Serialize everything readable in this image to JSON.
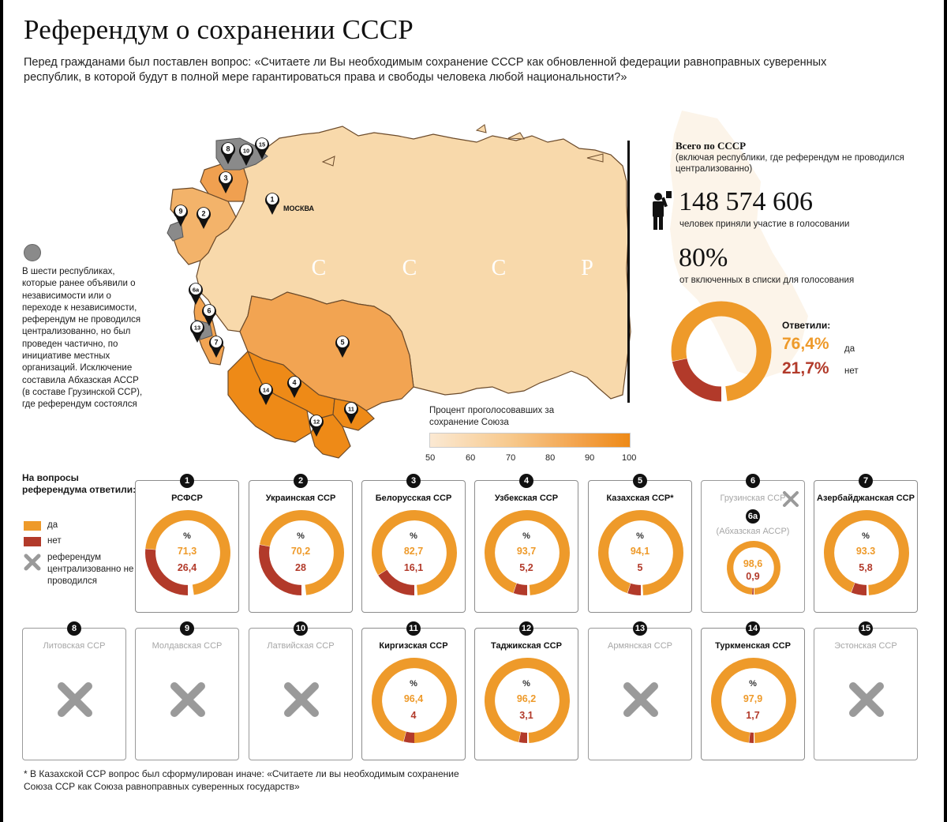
{
  "title": "Референдум о сохранении СССР",
  "lead": "Перед гражданами был поставлен вопрос: «Считаете ли Вы необходимым сохранение СССР как обновленной федерации равноправных суверенных республик, в которой будут в полной мере гарантироваться права и свободы человека любой национальности?»",
  "map": {
    "country_letters": [
      "С",
      "С",
      "С",
      "Р"
    ],
    "capital": "МОСКВА",
    "markers": [
      "1",
      "2",
      "3",
      "4",
      "5",
      "6",
      "6а",
      "7",
      "8",
      "9",
      "10",
      "11",
      "12",
      "13",
      "14",
      "15"
    ],
    "side_note": "В шести республиках, которые ранее объявили о независимости или о переходе к независимости, референдум не проводился централизованно, но был проведен частично, по инициативе местных организаций. Исключение составила Абхазская АССР (в составе Грузинской ССР), где референдум состоялся"
  },
  "totals": {
    "heading": "Всего по СССР",
    "subheading": "(включая республики, где референдум не проводился централизованно)",
    "participants": "148 574 606",
    "participants_label": "человек приняли участие в голосовании",
    "turnout": "80%",
    "turnout_label": "от включенных в списки для голосования",
    "answered_label": "Ответили:",
    "yes_value": "76,4%",
    "yes_label": "да",
    "no_value": "21,7%",
    "no_label": "нет"
  },
  "scale": {
    "title": "Процент проголосовавших за сохранение Союза",
    "ticks": [
      "50",
      "60",
      "70",
      "80",
      "90",
      "100"
    ]
  },
  "legend": {
    "heading": "На вопросы референдума ответили:",
    "yes": "да",
    "no": "нет",
    "not_held": "референдум централизованно не проводился"
  },
  "colors": {
    "yes": "#ee9a2a",
    "no": "#b23a2a",
    "not_held": "#9a9a9a",
    "map_light": "#f8d9ab",
    "map_dark": "#f1a04a"
  },
  "cards": [
    {
      "num": "1",
      "name": "РСФСР",
      "unit": "%",
      "yes": "71,3",
      "no": "26,4"
    },
    {
      "num": "2",
      "name": "Украинская ССР",
      "unit": "%",
      "yes": "70,2",
      "no": "28"
    },
    {
      "num": "3",
      "name": "Белорусская ССР",
      "unit": "%",
      "yes": "82,7",
      "no": "16,1"
    },
    {
      "num": "4",
      "name": "Узбекская ССР",
      "unit": "%",
      "yes": "93,7",
      "no": "5,2"
    },
    {
      "num": "5",
      "name": "Казахская ССР*",
      "unit": "%",
      "yes": "94,1",
      "no": "5"
    },
    {
      "num": "6",
      "name": "Грузинская ССР",
      "sub_num": "6а",
      "sub_name": "(Абхазская АССР)",
      "yes": "98,6",
      "no": "0,9"
    },
    {
      "num": "7",
      "name": "Азербайджанская ССР",
      "unit": "%",
      "yes": "93.3",
      "no": "5,8"
    },
    {
      "num": "8",
      "name": "Литовская ССР"
    },
    {
      "num": "9",
      "name": "Молдавская ССР"
    },
    {
      "num": "10",
      "name": "Латвийская ССР"
    },
    {
      "num": "11",
      "name": "Киргизская ССР",
      "unit": "%",
      "yes": "96,4",
      "no": "4"
    },
    {
      "num": "12",
      "name": "Таджикская ССР",
      "unit": "%",
      "yes": "96,2",
      "no": "3,1"
    },
    {
      "num": "13",
      "name": "Армянская ССР"
    },
    {
      "num": "14",
      "name": "Туркменская ССР",
      "unit": "%",
      "yes": "97,9",
      "no": "1,7"
    },
    {
      "num": "15",
      "name": "Эстонская ССР"
    }
  ],
  "chart_data": {
    "type": "pie",
    "title": "Референдум о сохранении СССР",
    "unit": "%",
    "categories": [
      "РСФСР",
      "Украинская ССР",
      "Белорусская ССР",
      "Узбекская ССР",
      "Казахская ССР*",
      "Абхазская АССР",
      "Азербайджанская ССР",
      "Киргизская ССР",
      "Таджикская ССР",
      "Туркменская ССР"
    ],
    "series": [
      {
        "name": "да",
        "values": [
          71.3,
          70.2,
          82.7,
          93.7,
          94.1,
          98.6,
          93.3,
          96.4,
          96.2,
          97.9
        ]
      },
      {
        "name": "нет",
        "values": [
          26.4,
          28,
          16.1,
          5.2,
          5,
          0.9,
          5.8,
          4,
          3.1,
          1.7
        ]
      }
    ],
    "not_held": [
      "Грузинская ССР",
      "Литовская ССР",
      "Молдавская ССР",
      "Латвийская ССР",
      "Армянская ССР",
      "Эстонская ССР"
    ],
    "total": {
      "yes": 76.4,
      "no": 21.7
    }
  },
  "footnote": "* В Казахской ССР вопрос был сформулирован иначе: «Считаете ли вы необходимым сохранение Союза ССР как Союза равноправных суверенных государств»"
}
